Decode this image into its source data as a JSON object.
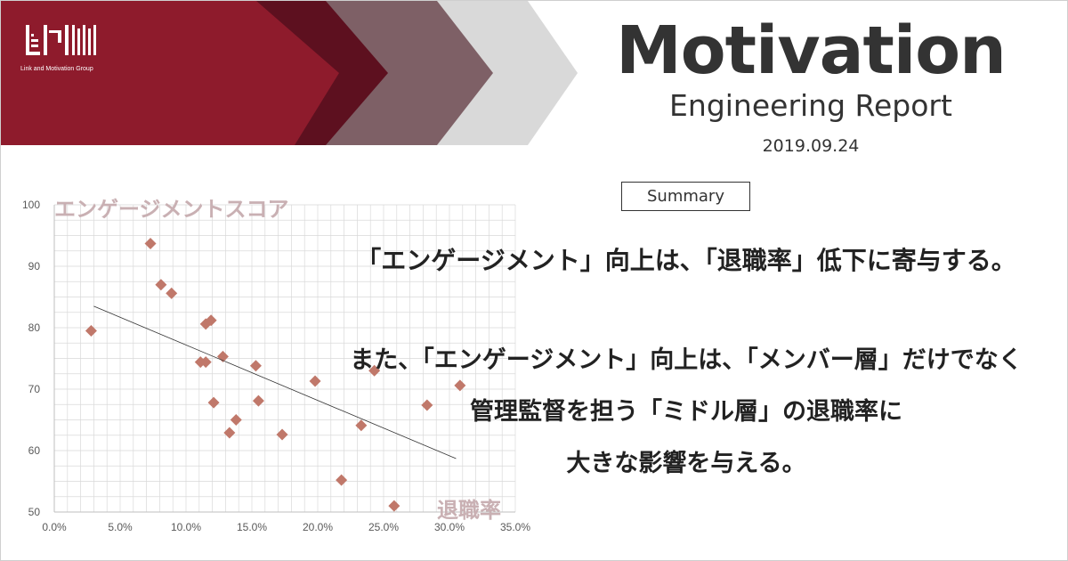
{
  "logo": {
    "caption": "Link and Motivation Group"
  },
  "header": {
    "title": "Motivation",
    "subtitle": "Engineering Report",
    "date": "2019.09.24",
    "colors": {
      "red": "#8e1b2c",
      "dark": "#5d101f",
      "mauve": "#7e6066",
      "gray": "#d9d9d9"
    }
  },
  "summary": {
    "label": "Summary",
    "lines": [
      "「エンゲージメント」向上は、「退職率」低下に寄与する。",
      "また、「エンゲージメント」向上は、「メンバー層」だけでなく",
      "管理監督を担う「ミドル層」の退職率に",
      "大きな影響を与える。"
    ]
  },
  "chart_data": {
    "type": "scatter",
    "title": "",
    "ylabel": "エンゲージメントスコア",
    "xlabel": "退職率",
    "xlim": [
      0,
      35
    ],
    "ylim": [
      50,
      100
    ],
    "x_tick_labels": [
      "0.0%",
      "5.0%",
      "10.0%",
      "15.0%",
      "20.0%",
      "25.0%",
      "30.0%",
      "35.0%"
    ],
    "y_tick_labels": [
      "50",
      "60",
      "70",
      "80",
      "90",
      "100"
    ],
    "grid": true,
    "legend": "none",
    "marker": "diamond",
    "marker_color": "#c0786a",
    "trendline": {
      "type": "linear",
      "from": [
        3.0,
        83.5
      ],
      "to": [
        30.5,
        58.7
      ],
      "color": "#333333"
    },
    "points": [
      {
        "x": 2.8,
        "y": 79.5
      },
      {
        "x": 7.3,
        "y": 93.7
      },
      {
        "x": 8.1,
        "y": 87.0
      },
      {
        "x": 8.9,
        "y": 85.6
      },
      {
        "x": 11.1,
        "y": 74.4
      },
      {
        "x": 11.5,
        "y": 74.4
      },
      {
        "x": 11.5,
        "y": 80.6
      },
      {
        "x": 11.9,
        "y": 81.2
      },
      {
        "x": 12.1,
        "y": 67.8
      },
      {
        "x": 12.8,
        "y": 75.3
      },
      {
        "x": 13.3,
        "y": 62.9
      },
      {
        "x": 13.8,
        "y": 65.0
      },
      {
        "x": 15.3,
        "y": 73.8
      },
      {
        "x": 15.5,
        "y": 68.1
      },
      {
        "x": 17.3,
        "y": 62.6
      },
      {
        "x": 19.8,
        "y": 71.3
      },
      {
        "x": 21.8,
        "y": 55.2
      },
      {
        "x": 23.3,
        "y": 64.1
      },
      {
        "x": 24.3,
        "y": 73.0
      },
      {
        "x": 25.8,
        "y": 51.0
      },
      {
        "x": 28.3,
        "y": 67.4
      },
      {
        "x": 30.8,
        "y": 70.6
      }
    ]
  }
}
